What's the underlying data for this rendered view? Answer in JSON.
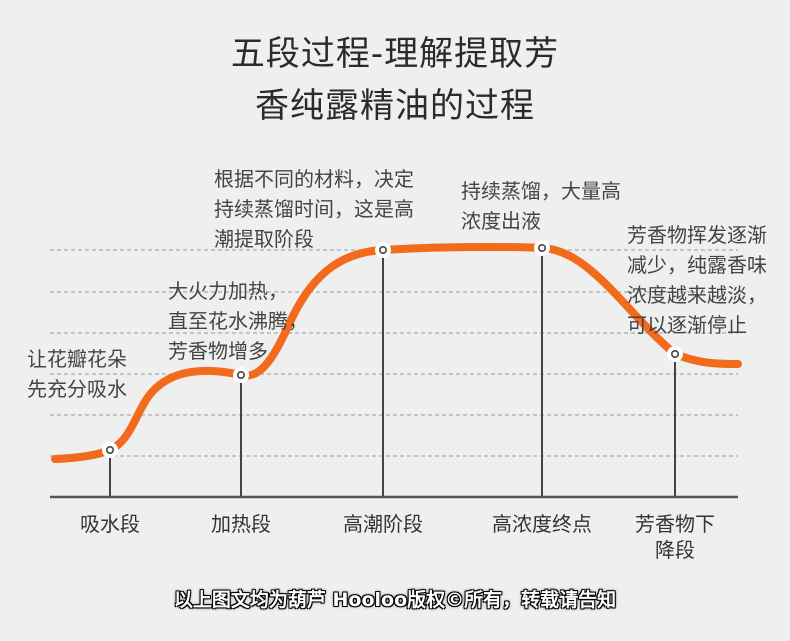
{
  "title": {
    "line1": "五段过程-理解提取芳",
    "line2": "香纯露精油的过程"
  },
  "colors": {
    "curve": "#f26b1d",
    "axis": "#555555",
    "guide": "#9a9a9a",
    "background": "#efefef"
  },
  "annotations": [
    {
      "lines": [
        "让花瓣花朵",
        "先充分吸水"
      ]
    },
    {
      "lines": [
        "大火力加热，",
        "直至花水沸腾，",
        "芳香物增多"
      ]
    },
    {
      "lines": [
        "根据不同的材料，决定",
        "持续蒸馏时间，这是高",
        "潮提取阶段"
      ]
    },
    {
      "lines": [
        "持续蒸馏，大量高",
        "浓度出液"
      ]
    },
    {
      "lines": [
        "芳香物挥发逐渐",
        "减少，纯露香味",
        "浓度越来越淡，",
        "可以逐渐停止"
      ]
    }
  ],
  "stages": [
    {
      "lines": [
        "吸水段"
      ]
    },
    {
      "lines": [
        "加热段"
      ]
    },
    {
      "lines": [
        "高潮阶段"
      ]
    },
    {
      "lines": [
        "高浓度终点"
      ]
    },
    {
      "lines": [
        "芳香物下",
        "降段"
      ]
    }
  ],
  "copyright": "以上图文均为葫芦 Hooloo版权©所有，转载请告知"
}
